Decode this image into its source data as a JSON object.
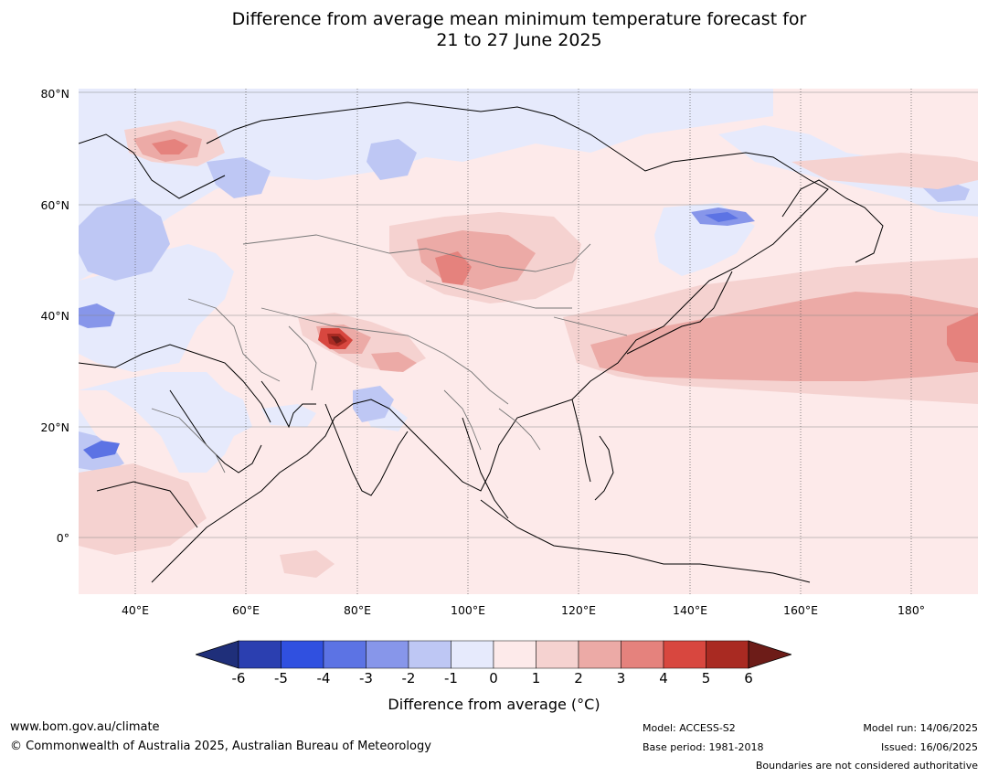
{
  "title": {
    "line1": "Difference from average mean minimum temperature forecast for",
    "line2": "21 to 27 June 2025"
  },
  "map": {
    "lat_labels": [
      "80°N",
      "60°N",
      "40°N",
      "20°N",
      "0°"
    ],
    "lon_labels": [
      "40°E",
      "60°E",
      "80°E",
      "100°E",
      "120°E",
      "140°E",
      "160°E",
      "180°"
    ],
    "extent": {
      "lon": [
        30,
        192
      ],
      "lat": [
        -10,
        81
      ]
    }
  },
  "colorbar": {
    "ticks": [
      "-6",
      "-5",
      "-4",
      "-3",
      "-2",
      "-1",
      "0",
      "1",
      "2",
      "3",
      "4",
      "5",
      "6"
    ],
    "colors": [
      "#1f2f7a",
      "#2b3fb0",
      "#3050e0",
      "#5c73e4",
      "#8796ea",
      "#bec7f4",
      "#e6eafc",
      "#fdeaea",
      "#f5d2d0",
      "#ecaaa6",
      "#e5827d",
      "#d8473f",
      "#a92a22",
      "#6d1c18"
    ],
    "label": "Difference from average (°C)"
  },
  "footer": {
    "url": "www.bom.gov.au/climate",
    "copyright": "© Commonwealth of Australia 2025, Australian Bureau of Meteorology",
    "model": "Model: ACCESS-S2",
    "base_period": "Base period: 1981-2018",
    "model_run": "Model run: 14/06/2025",
    "issued": "Issued: 16/06/2025",
    "disclaimer": "Boundaries are not considered authoritative"
  }
}
